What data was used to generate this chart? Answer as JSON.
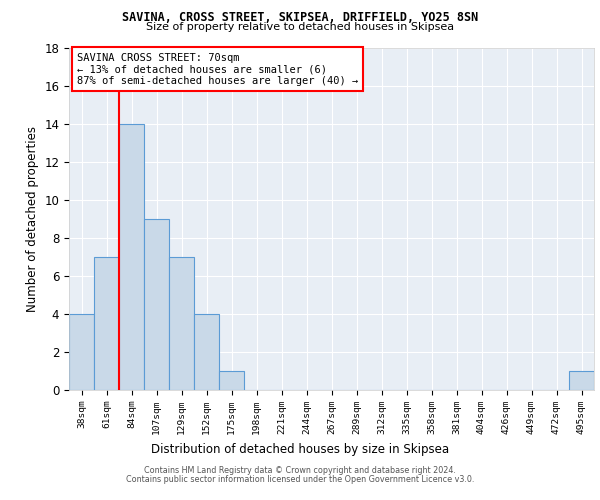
{
  "title1": "SAVINA, CROSS STREET, SKIPSEA, DRIFFIELD, YO25 8SN",
  "title2": "Size of property relative to detached houses in Skipsea",
  "xlabel": "Distribution of detached houses by size in Skipsea",
  "ylabel": "Number of detached properties",
  "categories": [
    "38sqm",
    "61sqm",
    "84sqm",
    "107sqm",
    "129sqm",
    "152sqm",
    "175sqm",
    "198sqm",
    "221sqm",
    "244sqm",
    "267sqm",
    "289sqm",
    "312sqm",
    "335sqm",
    "358sqm",
    "381sqm",
    "404sqm",
    "426sqm",
    "449sqm",
    "472sqm",
    "495sqm"
  ],
  "values": [
    4,
    7,
    14,
    9,
    7,
    4,
    1,
    0,
    0,
    0,
    0,
    0,
    0,
    0,
    0,
    0,
    0,
    0,
    0,
    0,
    1
  ],
  "bar_color": "#c9d9e8",
  "bar_edgecolor": "#5b9bd5",
  "property_line_x": 1.5,
  "annotation_title": "SAVINA CROSS STREET: 70sqm",
  "annotation_line1": "← 13% of detached houses are smaller (6)",
  "annotation_line2": "87% of semi-detached houses are larger (40) →",
  "vline_color": "red",
  "ylim": [
    0,
    18
  ],
  "yticks": [
    0,
    2,
    4,
    6,
    8,
    10,
    12,
    14,
    16,
    18
  ],
  "footer1": "Contains HM Land Registry data © Crown copyright and database right 2024.",
  "footer2": "Contains public sector information licensed under the Open Government Licence v3.0.",
  "background_color": "white",
  "plot_background": "#e8eef5",
  "grid_color": "#ffffff"
}
